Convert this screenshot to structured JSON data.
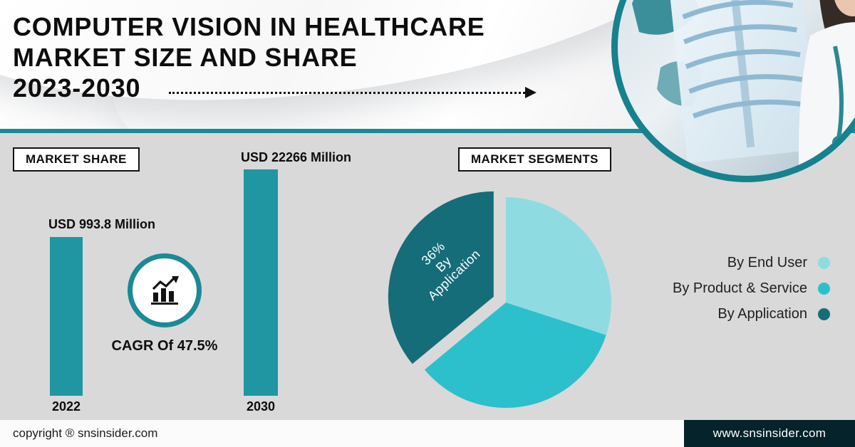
{
  "header": {
    "title_line1": "COMPUTER VISION IN HEALTHCARE",
    "title_line2": "MARKET SIZE AND SHARE",
    "title_line3": "2023-2030"
  },
  "labels": {
    "market_share": "MARKET SHARE",
    "market_segments": "MARKET SEGMENTS"
  },
  "bar_chart": {
    "value_2022": "USD 993.8 Million",
    "year_2022": "2022",
    "value_2030": "USD 22266 Million",
    "year_2030": "2030",
    "cagr_label": "CAGR Of 47.5%"
  },
  "pie_label": {
    "line1": "36%",
    "line2": "By",
    "line3": "Application"
  },
  "legend": [
    {
      "label": "By End User",
      "color": "#8edce2"
    },
    {
      "label": "By Product & Service",
      "color": "#2bc0cc"
    },
    {
      "label": "By Application",
      "color": "#156d79"
    }
  ],
  "chart_data": [
    {
      "type": "bar",
      "title": "MARKET SHARE",
      "categories": [
        "2022",
        "2030"
      ],
      "values": [
        993.8,
        22266
      ],
      "unit": "USD Million",
      "value_labels": [
        "USD 993.8 Million",
        "USD 22266 Million"
      ],
      "annotations": [
        "CAGR Of 47.5%"
      ],
      "bar_color": "#2096a2",
      "note": "bar heights are illustrative, not to scale"
    },
    {
      "type": "pie",
      "title": "MARKET SEGMENTS",
      "slices": [
        {
          "label": "By End User",
          "value": 30,
          "color": "#8edce2",
          "exploded": false,
          "value_estimated": true
        },
        {
          "label": "By Product & Service",
          "value": 34,
          "color": "#2bc0cc",
          "exploded": false,
          "value_estimated": true
        },
        {
          "label": "By Application",
          "value": 36,
          "color": "#156d79",
          "exploded": true,
          "data_label": "36% By Application"
        }
      ],
      "legend_position": "right"
    }
  ],
  "footer": {
    "copyright": "copyright ® snsinsider.com",
    "website": "www.snsinsider.com"
  },
  "colors": {
    "accent_teal": "#1a8a96",
    "bar": "#2096a2",
    "background_gray": "#d9d9d9",
    "footer_dark": "#05232a",
    "title_text": "#0d0d0d"
  }
}
